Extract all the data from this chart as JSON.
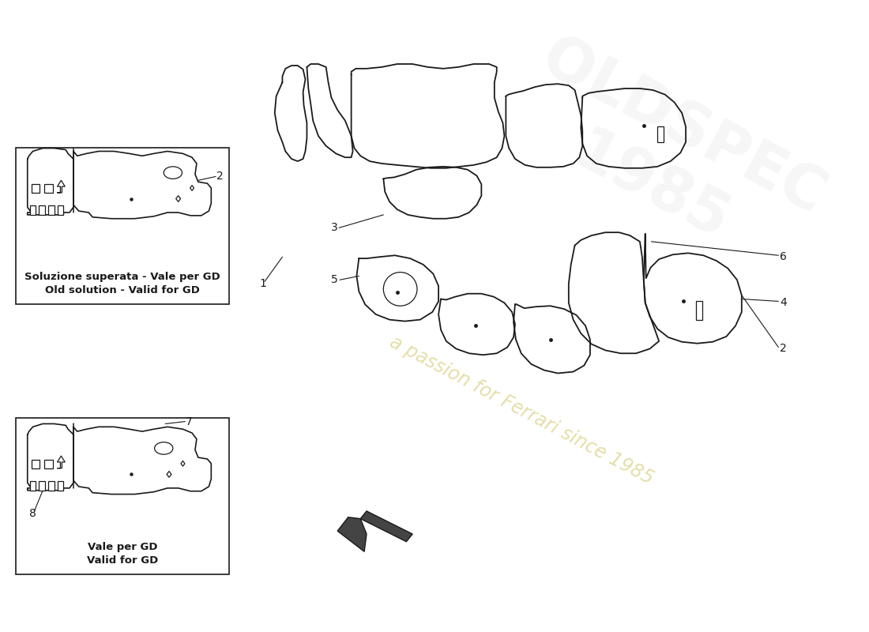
{
  "bg_color": "#ffffff",
  "line_color": "#1a1a1a",
  "watermark_text": "a passion for Ferrari since 1985",
  "watermark_color": "#d4c870",
  "box1_label_it": "Soluzione superata - Vale per GD",
  "box1_label_en": "Old solution - Valid for GD",
  "box2_label_it": "Vale per GD",
  "box2_label_en": "Valid for GD",
  "lw": 1.3,
  "num_fs": 10,
  "label_fs": 9.5
}
